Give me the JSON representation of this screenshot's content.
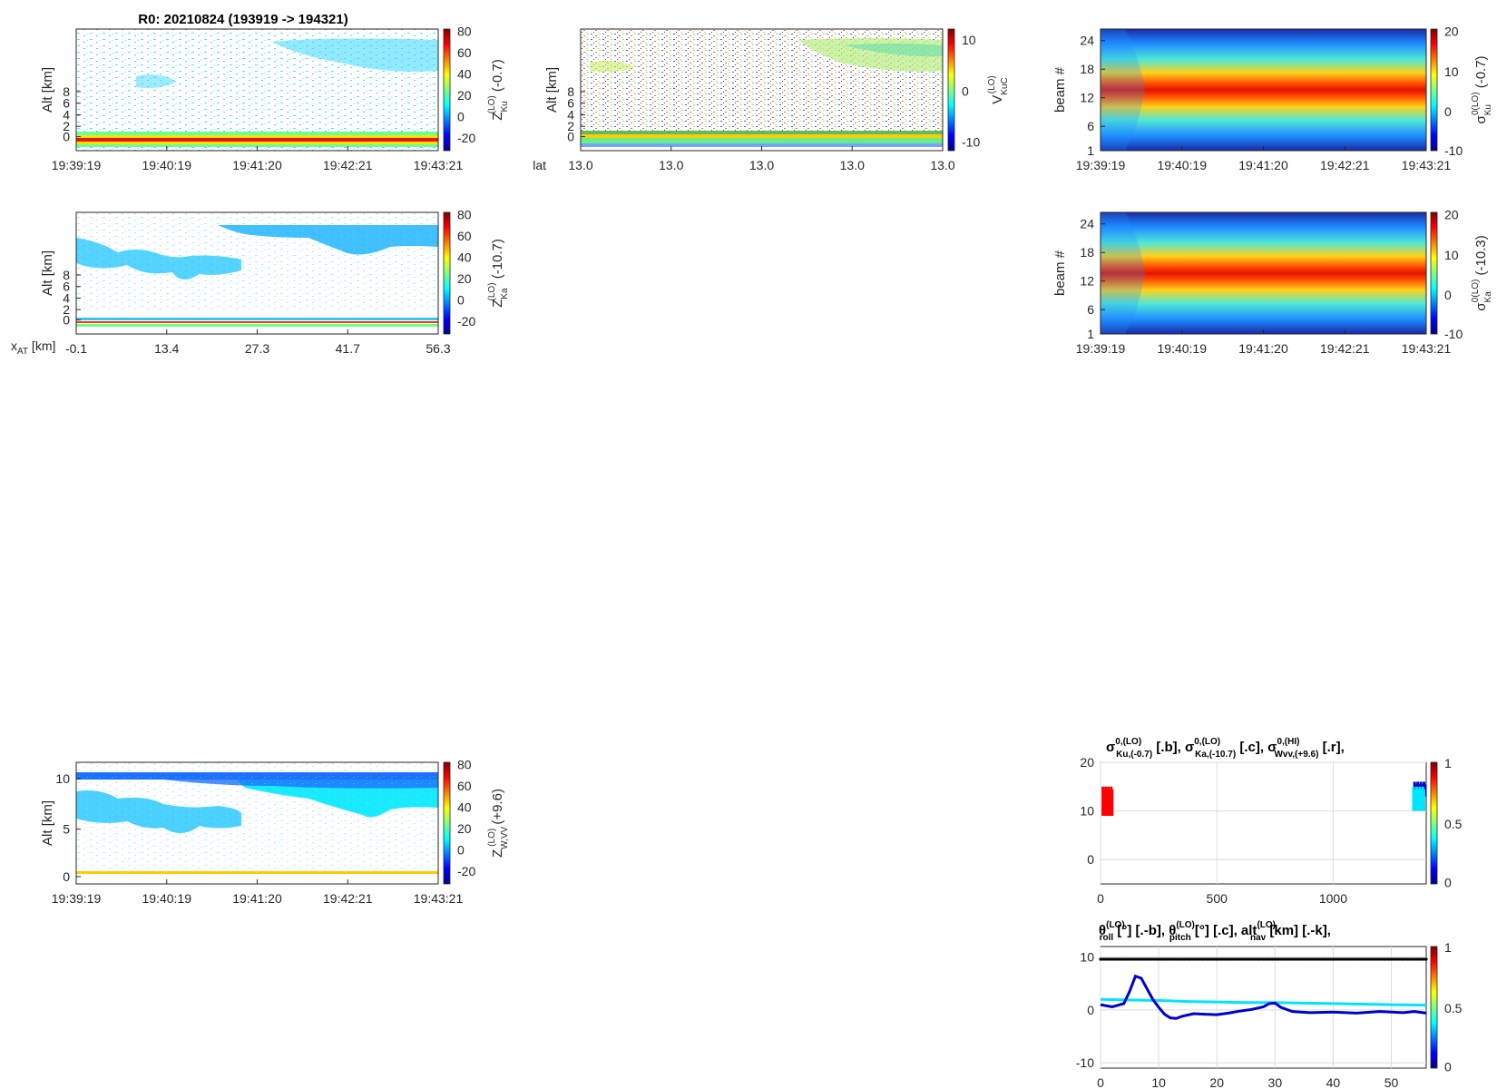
{
  "figure_title": "R0:  20210824 (193919 -> 194321)",
  "colors": {
    "red": "#ff0000",
    "cyan": "#00e5ff",
    "blue": "#0000cc",
    "black": "#000000"
  },
  "chart_data": [
    {
      "id": "zku",
      "type": "heatmap",
      "ylabel": "Alt [km]",
      "yticks": [
        "0",
        "2",
        "4",
        "6",
        "8"
      ],
      "xticks": [
        "19:39:19",
        "19:40:19",
        "19:41:20",
        "19:42:21",
        "19:43:21"
      ],
      "colorbar": {
        "ticks": [
          "80",
          "60",
          "40",
          "20",
          "0",
          "-20"
        ],
        "label_main": "Z",
        "label_sub": "Ku",
        "label_sup": "(LO)",
        "label_tail": " (-0.7)"
      }
    },
    {
      "id": "vku",
      "type": "heatmap",
      "ylabel": "Alt [km]",
      "yticks": [
        "0",
        "2",
        "4",
        "6",
        "8"
      ],
      "xlabel": "lat",
      "xticks": [
        "13.0",
        "13.0",
        "13.0",
        "13.0",
        "13.0"
      ],
      "colorbar": {
        "ticks": [
          "10",
          "0",
          "-10"
        ],
        "label_main": "V",
        "label_sub": "KuC",
        "label_sup": "(LO)",
        "label_tail": ""
      }
    },
    {
      "id": "sku",
      "type": "heatmap",
      "ylabel": "beam #",
      "yticks": [
        "1",
        "6",
        "12",
        "18",
        "24"
      ],
      "xticks": [
        "19:39:19",
        "19:40:19",
        "19:41:20",
        "19:42:21",
        "19:43:21"
      ],
      "colorbar": {
        "ticks": [
          "20",
          "10",
          "0",
          "-10"
        ],
        "label_main": "σ",
        "label_sub": "Ku",
        "label_sup": "0(LO)",
        "label_tail": " (-0.7)"
      }
    },
    {
      "id": "zka",
      "type": "heatmap",
      "ylabel": "Alt [km]",
      "yticks": [
        "0",
        "2",
        "4",
        "6",
        "8"
      ],
      "xlabel_main": "x",
      "xlabel_sub": "AT",
      "xlabel_tail": " [km]",
      "xticks": [
        "-0.1",
        "13.4",
        "27.3",
        "41.7",
        "56.3"
      ],
      "colorbar": {
        "ticks": [
          "80",
          "60",
          "40",
          "20",
          "0",
          "-20"
        ],
        "label_main": "Z",
        "label_sub": "Ka",
        "label_sup": "(LO)",
        "label_tail": " (-10.7)"
      }
    },
    {
      "id": "ska",
      "type": "heatmap",
      "ylabel": "beam #",
      "yticks": [
        "1",
        "6",
        "12",
        "18",
        "24"
      ],
      "xticks": [
        "19:39:19",
        "19:40:19",
        "19:41:20",
        "19:42:21",
        "19:43:21"
      ],
      "colorbar": {
        "ticks": [
          "20",
          "10",
          "0",
          "-10"
        ],
        "label_main": "σ",
        "label_sub": "Ka",
        "label_sup": "0(LO)",
        "label_tail": " (-10.3)"
      }
    },
    {
      "id": "zw",
      "type": "heatmap",
      "ylabel": "Alt [km]",
      "yticks": [
        "0",
        "5",
        "10"
      ],
      "xticks": [
        "19:39:19",
        "19:40:19",
        "19:41:20",
        "19:42:21",
        "19:43:21"
      ],
      "colorbar": {
        "ticks": [
          "80",
          "60",
          "40",
          "20",
          "0",
          "-20"
        ],
        "label_main": "Z",
        "label_sub": "W,VV",
        "label_sup": "(LO)",
        "label_tail": " (+9.6)"
      }
    },
    {
      "id": "sigma_line",
      "type": "scatter",
      "title_parts": [
        {
          "main": "σ",
          "sup": "0,(LO)",
          "sub": "Ku,(-0.7)",
          "tail": " [.b],  "
        },
        {
          "main": "σ",
          "sup": "0,(LO)",
          "sub": "Ka,(-10.7)",
          "tail": " [.c],  "
        },
        {
          "main": "σ",
          "sup": "0,(HI)",
          "sub": "Wvv,(+9.6)",
          "tail": " [.r],"
        }
      ],
      "xlim": [
        0,
        1400
      ],
      "ylim": [
        -5,
        20
      ],
      "xticks": [
        0,
        500,
        1000
      ],
      "yticks": [
        0,
        10,
        20
      ],
      "colorbar_ticks": [
        "1",
        "0.5",
        "0"
      ],
      "series": [
        {
          "color": "red",
          "x": [
            10,
            50
          ],
          "y": [
            9,
            15
          ]
        },
        {
          "color": "blue",
          "x": [
            1350,
            1395
          ],
          "y": [
            13,
            16
          ]
        },
        {
          "color": "cyan",
          "x": [
            1345,
            1390
          ],
          "y": [
            10,
            15
          ]
        }
      ]
    },
    {
      "id": "attitude_line",
      "type": "line",
      "title_parts": [
        {
          "main": "θ",
          "sup": "(LO)",
          "sub": "roll",
          "tail": " [°] [.-b],  "
        },
        {
          "main": "θ",
          "sup": "(LO)",
          "sub": "pitch",
          "tail": " [°] [.c],  "
        },
        {
          "main": "alt",
          "sup": "(LO)",
          "sub": "nav",
          "tail": " [km] [.-k],"
        }
      ],
      "xlim": [
        0,
        56
      ],
      "ylim": [
        -11,
        12
      ],
      "xticks": [
        0,
        10,
        20,
        30,
        40,
        50
      ],
      "yticks": [
        -10,
        0,
        10
      ],
      "colorbar_ticks": [
        "1",
        "0.5",
        "0"
      ],
      "series": [
        {
          "color": "black",
          "x": [
            0,
            56
          ],
          "y": [
            9.6,
            9.6
          ]
        },
        {
          "color": "cyan",
          "x": [
            0,
            5,
            10,
            15,
            20,
            25,
            30,
            35,
            40,
            45,
            50,
            56
          ],
          "y": [
            2.0,
            1.9,
            1.8,
            1.6,
            1.5,
            1.4,
            1.4,
            1.3,
            1.2,
            1.1,
            1.0,
            0.9
          ]
        },
        {
          "color": "blue",
          "x": [
            0,
            2,
            4,
            5,
            6,
            7,
            8,
            9,
            10,
            11,
            12,
            13,
            14,
            16,
            18,
            20,
            22,
            24,
            26,
            28,
            29,
            30,
            31,
            33,
            36,
            40,
            44,
            48,
            52,
            54,
            56
          ],
          "y": [
            1.0,
            0.6,
            1.2,
            3.5,
            6.4,
            6.0,
            4.0,
            2.0,
            0.5,
            -0.8,
            -1.5,
            -1.6,
            -1.2,
            -0.7,
            -0.8,
            -0.9,
            -0.6,
            -0.2,
            0.1,
            0.6,
            1.2,
            1.3,
            0.5,
            -0.3,
            -0.5,
            -0.4,
            -0.6,
            -0.3,
            -0.5,
            -0.3,
            -0.6
          ]
        }
      ]
    }
  ]
}
